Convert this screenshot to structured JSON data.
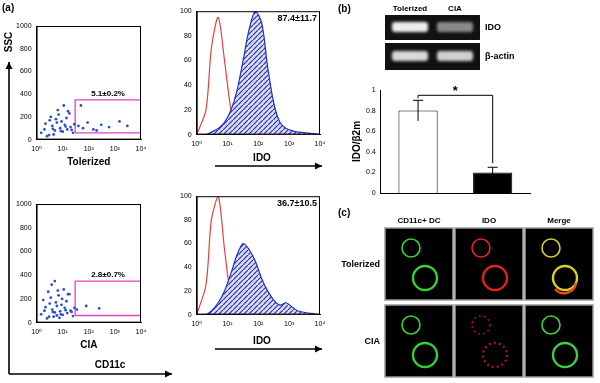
{
  "panel_labels": [
    "(a)",
    "(b)",
    "(c)"
  ],
  "panel_a": {
    "y_axis_label": "SSC",
    "x_axis_label": "CD11c",
    "histogram_axis_label": "IDO"
  },
  "chart_data": [
    {
      "type": "scatter",
      "label": "Tolerized",
      "x": [
        1.5,
        2,
        3,
        4,
        5,
        6,
        8,
        10,
        12,
        15,
        20,
        25,
        3.5,
        5.5,
        7,
        9,
        14,
        18,
        2.5,
        4.5,
        6.5,
        11,
        16,
        2.2,
        3.2,
        4.2,
        8.5,
        13,
        22,
        28,
        40,
        60,
        90,
        150,
        300,
        600,
        1500,
        3000,
        50,
        200
      ],
      "y": [
        60,
        90,
        40,
        120,
        80,
        150,
        100,
        70,
        130,
        90,
        110,
        60,
        200,
        180,
        220,
        160,
        190,
        230,
        30,
        45,
        260,
        300,
        250,
        140,
        170,
        95,
        75,
        115,
        85,
        135,
        120,
        100,
        150,
        90,
        130,
        110,
        160,
        120,
        300,
        80
      ],
      "color": "#2f4fd0",
      "log": "x",
      "xlim": [
        1,
        10000
      ],
      "xticks": [
        {
          "value": 1,
          "label": "10⁰"
        },
        {
          "value": 10,
          "label": "10¹"
        },
        {
          "value": 100,
          "label": "10²"
        },
        {
          "value": 1000,
          "label": "10³"
        },
        {
          "value": 10000,
          "label": "10⁴"
        }
      ],
      "ylim": [
        0,
        1000
      ],
      "yticks": [
        0,
        200,
        400,
        600,
        800,
        1000
      ],
      "grid": false,
      "gate": {
        "x": [
          30,
          10000
        ],
        "y": [
          60,
          350
        ],
        "label": "5.1±0.2%",
        "color": "#e040c8"
      }
    },
    {
      "type": "line",
      "annotation": "87.4±11.7",
      "x": [
        1,
        2,
        3,
        5,
        8,
        13,
        20,
        32,
        50,
        80,
        130,
        200,
        320,
        500,
        800,
        1300,
        2000,
        5000,
        10000
      ],
      "series": [
        {
          "type": "area",
          "color": "#2030c8",
          "values": [
            0,
            0,
            2,
            5,
            10,
            20,
            35,
            60,
            85,
            100,
            90,
            55,
            25,
            10,
            5,
            3,
            2,
            1,
            0
          ]
        },
        {
          "type": "line",
          "color": "#e8403a",
          "values": [
            0,
            20,
            70,
            95,
            60,
            20,
            5,
            2,
            0,
            0,
            0,
            0,
            0,
            0,
            0,
            0,
            0,
            0,
            0
          ]
        }
      ],
      "log": "x",
      "xlim": [
        1,
        10000
      ],
      "xticks": [
        {
          "value": 1,
          "label": "10⁰"
        },
        {
          "value": 10,
          "label": "10¹"
        },
        {
          "value": 100,
          "label": "10²"
        },
        {
          "value": 1000,
          "label": "10³"
        },
        {
          "value": 10000,
          "label": "10⁴"
        }
      ],
      "ylim": [
        0,
        100
      ],
      "yticks": [
        0,
        20,
        40,
        60,
        80,
        100
      ],
      "grid": false
    },
    {
      "type": "scatter",
      "label": "CIA",
      "x": [
        1.5,
        2,
        3,
        4,
        5,
        6,
        8,
        10,
        12,
        15,
        20,
        25,
        3.5,
        5.5,
        7,
        9,
        14,
        18,
        2.5,
        4.5,
        6.5,
        11,
        16,
        2.2,
        3.2,
        4.2,
        8.5,
        13,
        22,
        28,
        1.8,
        2.8,
        3.8,
        5,
        6,
        7.5,
        9.5,
        35,
        80,
        250
      ],
      "y": [
        70,
        100,
        50,
        110,
        85,
        140,
        95,
        65,
        125,
        80,
        100,
        55,
        210,
        170,
        230,
        150,
        180,
        240,
        35,
        50,
        270,
        280,
        240,
        130,
        160,
        90,
        70,
        105,
        90,
        125,
        190,
        260,
        320,
        350,
        60,
        40,
        200,
        110,
        140,
        120
      ],
      "color": "#2f4fd0",
      "log": "x",
      "xlim": [
        1,
        10000
      ],
      "xticks": [
        {
          "value": 1,
          "label": "10⁰"
        },
        {
          "value": 10,
          "label": "10¹"
        },
        {
          "value": 100,
          "label": "10²"
        },
        {
          "value": 1000,
          "label": "10³"
        },
        {
          "value": 10000,
          "label": "10⁴"
        }
      ],
      "ylim": [
        0,
        1000
      ],
      "yticks": [
        0,
        200,
        400,
        600,
        800,
        1000
      ],
      "grid": false,
      "gate": {
        "x": [
          30,
          10000
        ],
        "y": [
          60,
          350
        ],
        "label": "2.8±0.7%",
        "color": "#e040c8"
      }
    },
    {
      "type": "line",
      "annotation": "36.7±10.5",
      "x": [
        1,
        2,
        3,
        5,
        8,
        13,
        20,
        32,
        50,
        80,
        130,
        200,
        320,
        500,
        800,
        1300,
        2000,
        5000,
        10000
      ],
      "series": [
        {
          "type": "area",
          "color": "#2030c8",
          "values": [
            0,
            0,
            3,
            10,
            20,
            35,
            50,
            60,
            55,
            45,
            30,
            20,
            12,
            8,
            10,
            6,
            3,
            1,
            0
          ]
        },
        {
          "type": "line",
          "color": "#e8403a",
          "values": [
            0,
            25,
            80,
            100,
            55,
            15,
            5,
            2,
            0,
            0,
            0,
            0,
            0,
            0,
            0,
            0,
            0,
            0,
            0
          ]
        }
      ],
      "log": "x",
      "xlim": [
        1,
        10000
      ],
      "xticks": [
        {
          "value": 1,
          "label": "10⁰"
        },
        {
          "value": 10,
          "label": "10¹"
        },
        {
          "value": 100,
          "label": "10²"
        },
        {
          "value": 1000,
          "label": "10³"
        },
        {
          "value": 10000,
          "label": "10⁴"
        }
      ],
      "ylim": [
        0,
        100
      ],
      "yticks": [
        0,
        20,
        40,
        60,
        80,
        100
      ],
      "grid": false
    },
    {
      "type": "bar",
      "categories": [
        null,
        null
      ],
      "values": [
        0.8,
        0.2
      ],
      "errors": [
        0.1,
        0.05
      ],
      "colors": [
        "#ffffff",
        "#000000"
      ],
      "y_label": "IDO/β2m",
      "annotation": "*",
      "ylim": [
        0,
        1
      ],
      "yticks": [
        0,
        0.2,
        0.4,
        0.6,
        0.8,
        1
      ],
      "grid": false,
      "tick_labels": "y"
    }
  ],
  "gel": {
    "lanes": [
      "Tolerized",
      "CIA"
    ],
    "bands": [
      "IDO",
      "β-actin"
    ]
  },
  "microscopy": {
    "columns": [
      "CD11c+ DC",
      "IDO",
      "Merge"
    ],
    "rows": [
      "Tolerized",
      "CIA"
    ]
  }
}
